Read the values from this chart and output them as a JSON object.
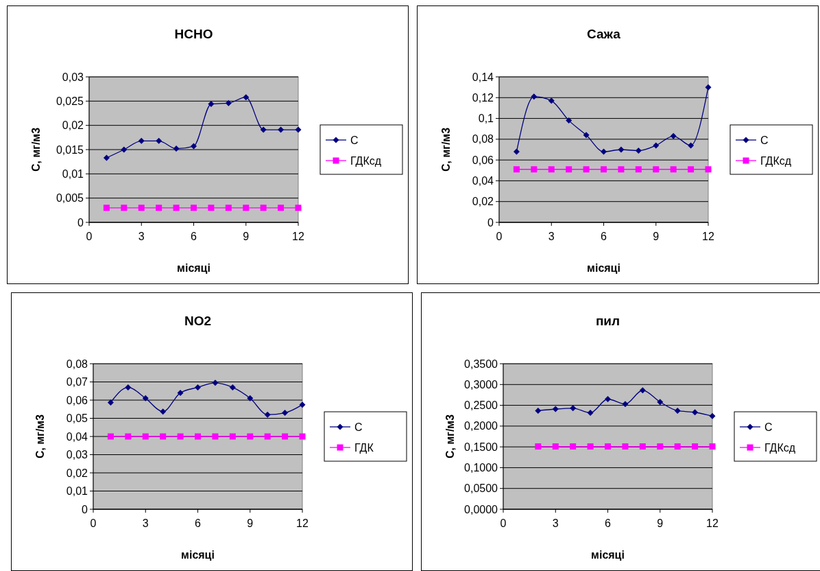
{
  "chart_data": [
    {
      "type": "line",
      "title": "HCHO",
      "xlabel": "місяці",
      "ylabel": "С, мг/м3",
      "x": [
        1,
        2,
        3,
        4,
        5,
        6,
        7,
        8,
        9,
        10,
        11,
        12
      ],
      "xlim": [
        0,
        12
      ],
      "xticks": [
        0,
        3,
        6,
        9,
        12
      ],
      "ylim": [
        0,
        0.03
      ],
      "yticks": [
        {
          "value": 0,
          "label": "0"
        },
        {
          "value": 0.005,
          "label": "0,005"
        },
        {
          "value": 0.01,
          "label": "0,01"
        },
        {
          "value": 0.015,
          "label": "0,015"
        },
        {
          "value": 0.02,
          "label": "0,02"
        },
        {
          "value": 0.025,
          "label": "0,025"
        },
        {
          "value": 0.03,
          "label": "0,03"
        }
      ],
      "grid": "y",
      "legend": "right",
      "series": [
        {
          "name": "С",
          "color": "#000080",
          "marker": "diamond",
          "values": [
            0.0133,
            0.015,
            0.0168,
            0.0168,
            0.0152,
            0.0157,
            0.0244,
            0.0246,
            0.0258,
            0.0191,
            0.0191,
            0.0191
          ]
        },
        {
          "name": "ГДКсд",
          "color": "#ff00ff",
          "marker": "square",
          "values": [
            0.003,
            0.003,
            0.003,
            0.003,
            0.003,
            0.003,
            0.003,
            0.003,
            0.003,
            0.003,
            0.003,
            0.003
          ]
        }
      ]
    },
    {
      "type": "line",
      "title": "Сажа",
      "xlabel": "місяці",
      "ylabel": "С, мг/м3",
      "x": [
        1,
        2,
        3,
        4,
        5,
        6,
        7,
        8,
        9,
        10,
        11,
        12
      ],
      "xlim": [
        0,
        12
      ],
      "xticks": [
        0,
        3,
        6,
        9,
        12
      ],
      "ylim": [
        0,
        0.14
      ],
      "yticks": [
        {
          "value": 0,
          "label": "0"
        },
        {
          "value": 0.02,
          "label": "0,02"
        },
        {
          "value": 0.04,
          "label": "0,04"
        },
        {
          "value": 0.06,
          "label": "0,06"
        },
        {
          "value": 0.08,
          "label": "0,08"
        },
        {
          "value": 0.1,
          "label": "0,1"
        },
        {
          "value": 0.12,
          "label": "0,12"
        },
        {
          "value": 0.14,
          "label": "0,14"
        }
      ],
      "grid": "y",
      "legend": "right",
      "series": [
        {
          "name": "С",
          "color": "#000080",
          "marker": "diamond",
          "values": [
            0.068,
            0.121,
            0.117,
            0.098,
            0.084,
            0.068,
            0.07,
            0.069,
            0.074,
            0.083,
            0.074,
            0.13
          ]
        },
        {
          "name": "ГДКсд",
          "color": "#ff00ff",
          "marker": "square",
          "values": [
            0.051,
            0.051,
            0.051,
            0.051,
            0.051,
            0.051,
            0.051,
            0.051,
            0.051,
            0.051,
            0.051,
            0.051
          ]
        }
      ]
    },
    {
      "type": "line",
      "title": "NO2",
      "xlabel": "місяці",
      "ylabel": "С, мг/м3",
      "x": [
        1,
        2,
        3,
        4,
        5,
        6,
        7,
        8,
        9,
        10,
        11,
        12
      ],
      "xlim": [
        0,
        12
      ],
      "xticks": [
        0,
        3,
        6,
        9,
        12
      ],
      "ylim": [
        0,
        0.08
      ],
      "yticks": [
        {
          "value": 0,
          "label": "0"
        },
        {
          "value": 0.01,
          "label": "0,01"
        },
        {
          "value": 0.02,
          "label": "0,02"
        },
        {
          "value": 0.03,
          "label": "0,03"
        },
        {
          "value": 0.04,
          "label": "0,04"
        },
        {
          "value": 0.05,
          "label": "0,05"
        },
        {
          "value": 0.06,
          "label": "0,06"
        },
        {
          "value": 0.07,
          "label": "0,07"
        },
        {
          "value": 0.08,
          "label": "0,08"
        }
      ],
      "grid": "y",
      "legend": "right",
      "series": [
        {
          "name": "С",
          "color": "#000080",
          "marker": "diamond",
          "values": [
            0.0587,
            0.067,
            0.061,
            0.0537,
            0.064,
            0.067,
            0.0695,
            0.067,
            0.061,
            0.052,
            0.053,
            0.0575
          ]
        },
        {
          "name": "ГДК",
          "color": "#ff00ff",
          "marker": "square",
          "values": [
            0.04,
            0.04,
            0.04,
            0.04,
            0.04,
            0.04,
            0.04,
            0.04,
            0.04,
            0.04,
            0.04,
            0.04
          ]
        }
      ]
    },
    {
      "type": "line",
      "title": "пил",
      "xlabel": "місяці",
      "ylabel": "С, мг/м3",
      "x": [
        2,
        3,
        4,
        5,
        6,
        7,
        8,
        9,
        10,
        11,
        12
      ],
      "xlim": [
        0,
        12
      ],
      "xticks": [
        0,
        3,
        6,
        9,
        12
      ],
      "ylim": [
        0,
        0.35
      ],
      "yticks": [
        {
          "value": 0,
          "label": "0,0000"
        },
        {
          "value": 0.05,
          "label": "0,0500"
        },
        {
          "value": 0.1,
          "label": "0,1000"
        },
        {
          "value": 0.15,
          "label": "0,1500"
        },
        {
          "value": 0.2,
          "label": "0,2000"
        },
        {
          "value": 0.25,
          "label": "0,2500"
        },
        {
          "value": 0.3,
          "label": "0,3000"
        },
        {
          "value": 0.35,
          "label": "0,3500"
        }
      ],
      "grid": "y",
      "legend": "right",
      "series": [
        {
          "name": "С",
          "color": "#000080",
          "marker": "diamond",
          "values": [
            0.237,
            0.241,
            0.243,
            0.232,
            0.265,
            0.253,
            0.286,
            0.258,
            0.237,
            0.233,
            0.224
          ]
        },
        {
          "name": "ГДКсд",
          "color": "#ff00ff",
          "marker": "square",
          "values": [
            0.151,
            0.151,
            0.151,
            0.151,
            0.151,
            0.151,
            0.151,
            0.151,
            0.151,
            0.151,
            0.151
          ]
        }
      ]
    }
  ]
}
